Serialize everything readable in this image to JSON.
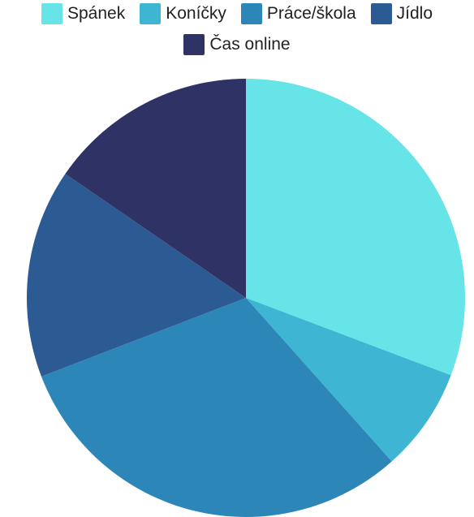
{
  "chart_data": {
    "type": "pie",
    "title": "",
    "categories": [
      "Spánek",
      "Koníčky",
      "Práce/škola",
      "Jídlo",
      "Čas online"
    ],
    "values": [
      33.3,
      8.3,
      33.3,
      16.7,
      16.7
    ],
    "colors": [
      "#67E4E8",
      "#3FB5D4",
      "#2C87B8",
      "#2C5B93",
      "#2F3265"
    ],
    "legend_position": "top",
    "start_angle": "12 o'clock",
    "direction": "clockwise"
  }
}
